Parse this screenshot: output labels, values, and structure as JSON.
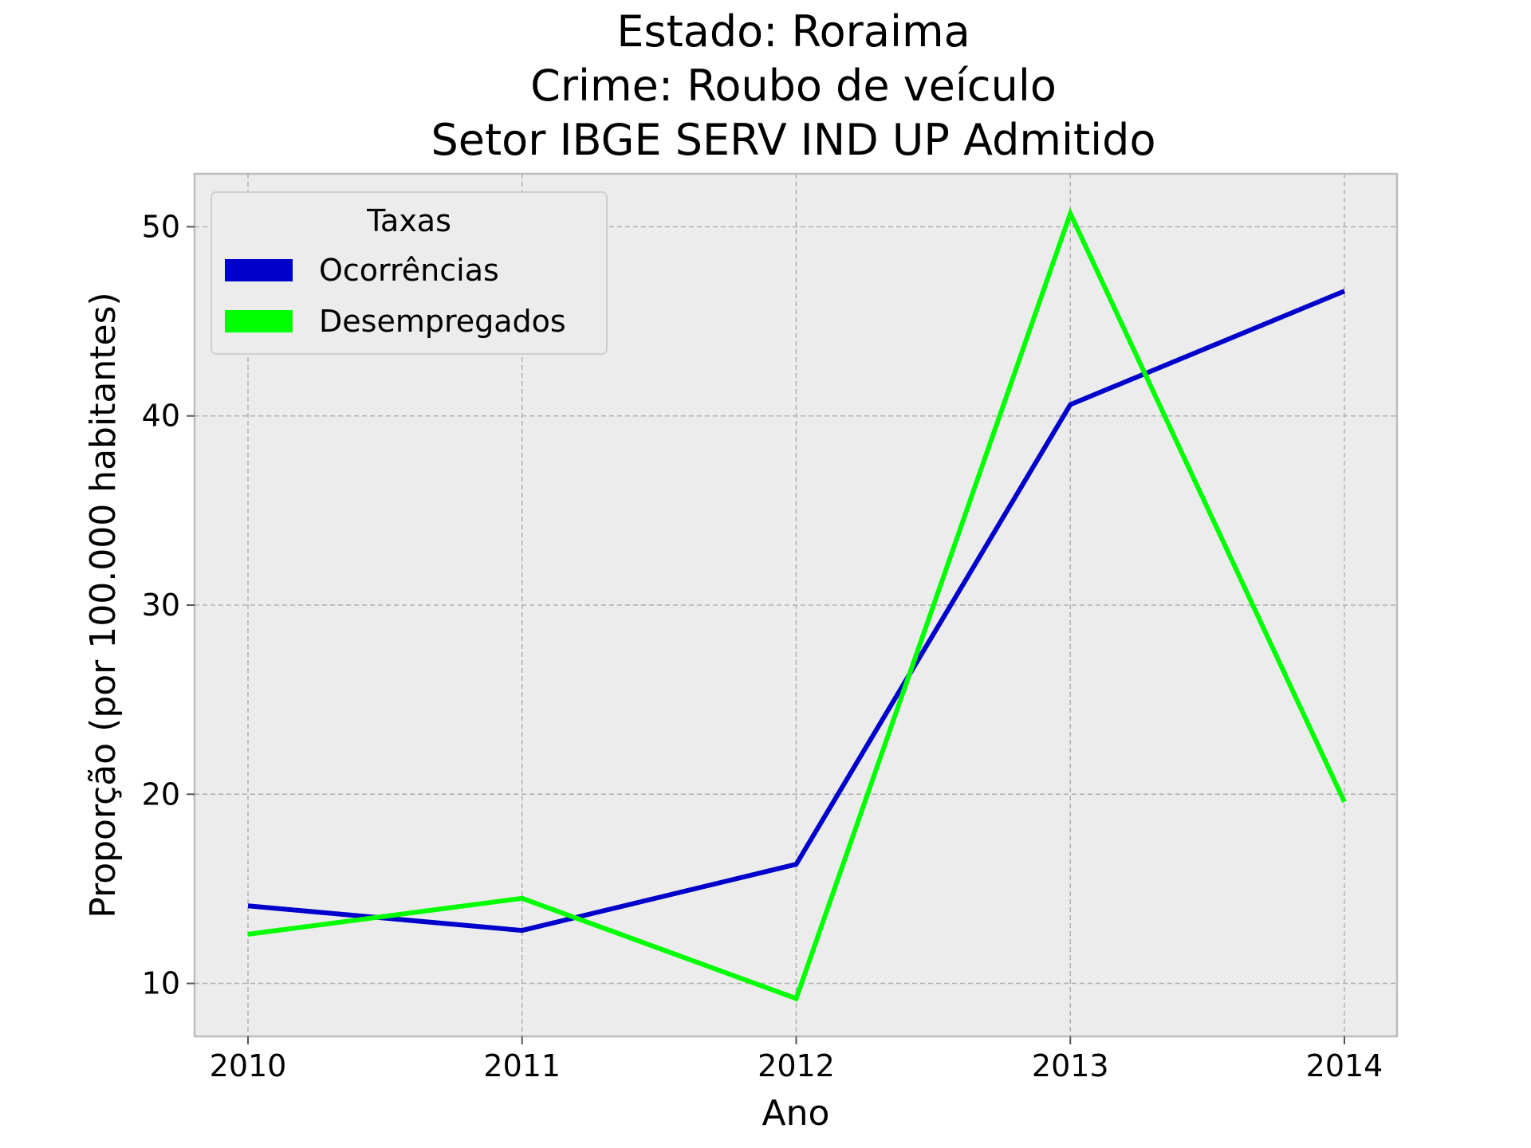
{
  "chart_data": {
    "type": "line",
    "title_lines": [
      "Estado: Roraima",
      "Crime: Roubo de veículo",
      "Setor IBGE  SERV IND UP   Admitido"
    ],
    "xlabel": "Ano",
    "ylabel": "Proporção (por 100.000 habitantes)",
    "x": [
      "2010",
      "2011",
      "2012",
      "2013",
      "2014"
    ],
    "yticks": [
      "10",
      "20",
      "30",
      "40",
      "50"
    ],
    "ylim": [
      7.2,
      52.8
    ],
    "grid": true,
    "legend": {
      "title": "Taxas",
      "position": "top-left"
    },
    "series": [
      {
        "name": "Ocorrências",
        "color": "#0000cc",
        "values": [
          14.1,
          12.8,
          16.3,
          40.6,
          46.6
        ]
      },
      {
        "name": "Desempregados",
        "color": "#00ff00",
        "values": [
          12.6,
          14.5,
          9.2,
          50.7,
          19.6
        ]
      }
    ]
  }
}
